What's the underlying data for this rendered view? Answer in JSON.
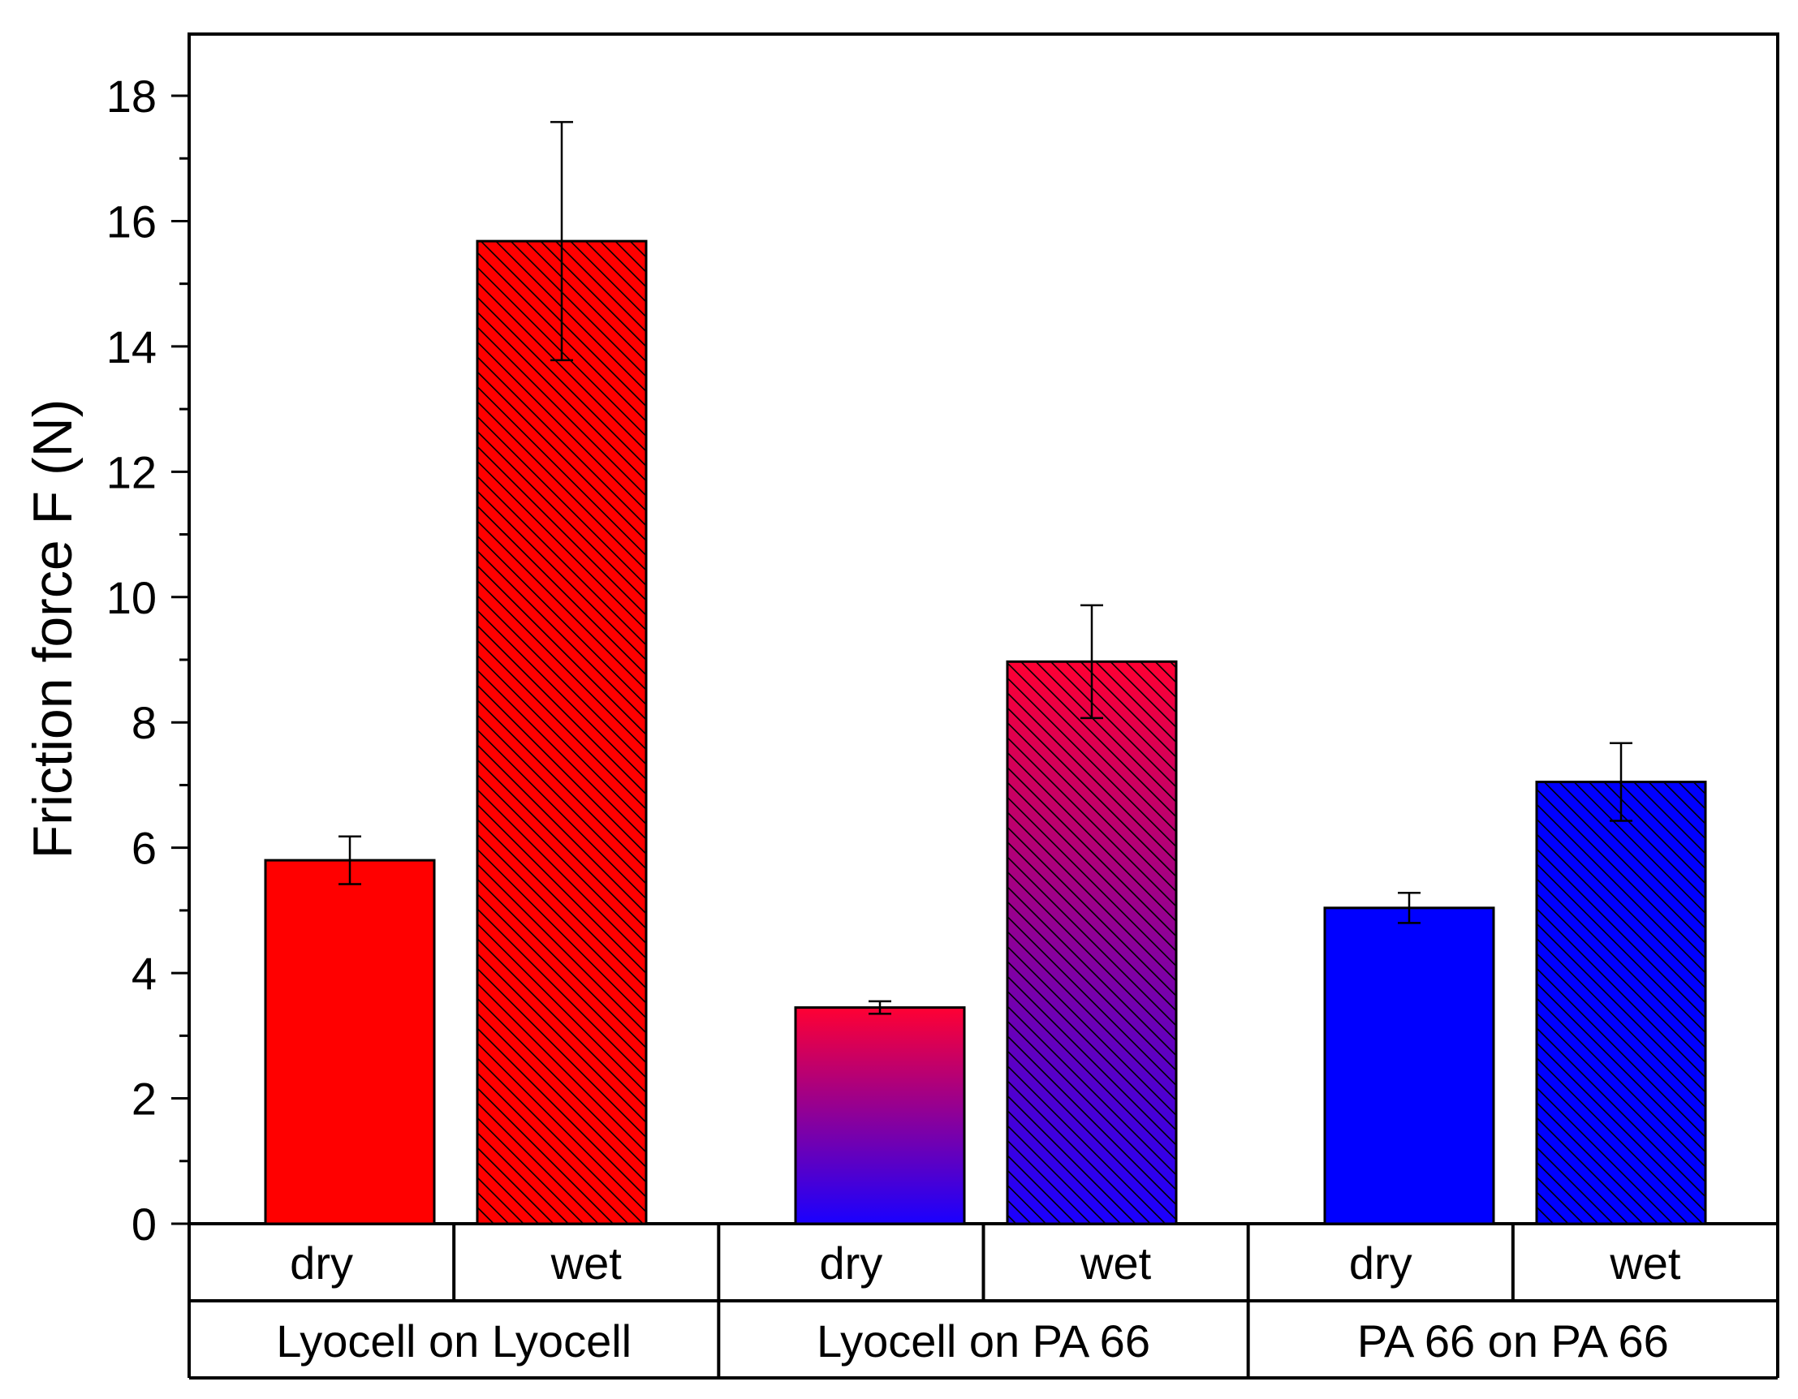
{
  "chart_data": {
    "type": "bar",
    "title": "",
    "xlabel": "",
    "ylabel": "Friction force F (N)",
    "ylim": [
      0,
      19
    ],
    "yticks": [
      0,
      2,
      4,
      6,
      8,
      10,
      12,
      14,
      16,
      18
    ],
    "tick_labels": [
      "0",
      "2",
      "4",
      "6",
      "8",
      "10",
      "12",
      "14",
      "16",
      "18"
    ],
    "grid": false,
    "groups": [
      "Lyocell on Lyocell",
      "Lyocell on PA 66",
      "PA 66 on PA 66"
    ],
    "conditions": [
      "dry",
      "wet",
      "dry",
      "wet",
      "dry",
      "wet"
    ],
    "bars": [
      {
        "group": "Lyocell on Lyocell",
        "condition": "dry",
        "value": 5.8,
        "error": 0.38,
        "hatched": false,
        "colors": [
          "#ff0000",
          "#ff0000"
        ]
      },
      {
        "group": "Lyocell on Lyocell",
        "condition": "wet",
        "value": 15.68,
        "error": 1.9,
        "hatched": true,
        "colors": [
          "#ff0000",
          "#ff0000"
        ]
      },
      {
        "group": "Lyocell on PA 66",
        "condition": "dry",
        "value": 3.45,
        "error": 0.1,
        "hatched": false,
        "colors": [
          "#ff0033",
          "#1a00ff"
        ]
      },
      {
        "group": "Lyocell on PA 66",
        "condition": "wet",
        "value": 8.97,
        "error": 0.9,
        "hatched": true,
        "colors": [
          "#ff0033",
          "#1a00ff"
        ]
      },
      {
        "group": "PA 66 on PA 66",
        "condition": "dry",
        "value": 5.04,
        "error": 0.24,
        "hatched": false,
        "colors": [
          "#0000ff",
          "#0000ff"
        ]
      },
      {
        "group": "PA 66 on PA 66",
        "condition": "wet",
        "value": 7.05,
        "error": 0.62,
        "hatched": true,
        "colors": [
          "#0000ff",
          "#0000ff"
        ]
      }
    ]
  }
}
